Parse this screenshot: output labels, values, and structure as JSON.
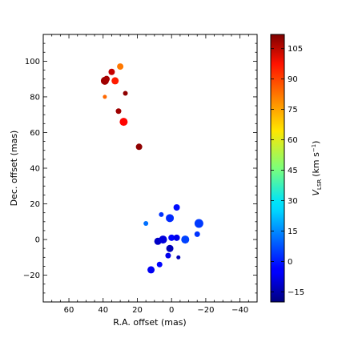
{
  "chart_data": {
    "type": "scatter",
    "xlabel": "R.A. offset (mas)",
    "ylabel": "Dec. offset (mas)",
    "xlim": [
      75,
      -50
    ],
    "ylim": [
      -35,
      115
    ],
    "x_ticks": [
      60,
      40,
      20,
      0,
      -20,
      -40
    ],
    "x_tick_labels": [
      "60",
      "40",
      "20",
      "0",
      "−20",
      "−40"
    ],
    "y_ticks": [
      -20,
      0,
      20,
      40,
      60,
      80,
      100
    ],
    "y_tick_labels": [
      "−20",
      "0",
      "20",
      "40",
      "60",
      "80",
      "100"
    ],
    "colorbar": {
      "label_main": "V",
      "label_sub": "LSR",
      "label_unit_open": "(km s",
      "label_unit_exp": "−1",
      "label_unit_close": ")",
      "range": [
        -20,
        112
      ],
      "colormap": "jet",
      "ticks": [
        -15,
        0,
        15,
        30,
        45,
        60,
        75,
        90,
        105
      ],
      "tick_labels": [
        "−15",
        "0",
        "15",
        "30",
        "45",
        "60",
        "75",
        "90",
        "105"
      ]
    },
    "series": [
      {
        "points": [
          {
            "x": 39,
            "y": 89,
            "v": 108,
            "size": 5
          },
          {
            "x": 38,
            "y": 90,
            "v": 107,
            "size": 4
          },
          {
            "x": 35,
            "y": 94,
            "v": 103,
            "size": 4
          },
          {
            "x": 30,
            "y": 97,
            "v": 80,
            "size": 4
          },
          {
            "x": 33,
            "y": 89,
            "v": 92,
            "size": 4.5
          },
          {
            "x": 39,
            "y": 80,
            "v": 82,
            "size": 2.5
          },
          {
            "x": 27,
            "y": 82,
            "v": 110,
            "size": 3
          },
          {
            "x": 31,
            "y": 72,
            "v": 108,
            "size": 3.5
          },
          {
            "x": 28,
            "y": 66,
            "v": 95,
            "size": 5
          },
          {
            "x": 19,
            "y": 52,
            "v": 110,
            "size": 4
          },
          {
            "x": 15,
            "y": 9,
            "v": 11,
            "size": 3
          },
          {
            "x": 6,
            "y": 14,
            "v": 3,
            "size": 3
          },
          {
            "x": -3,
            "y": 18,
            "v": -2,
            "size": 4
          },
          {
            "x": 1,
            "y": 12,
            "v": 2,
            "size": 5
          },
          {
            "x": -16,
            "y": 9,
            "v": 4,
            "size": 5.5
          },
          {
            "x": -15,
            "y": 3,
            "v": 3,
            "size": 3.5
          },
          {
            "x": 8,
            "y": -1,
            "v": -11,
            "size": 4.5
          },
          {
            "x": 5,
            "y": 0,
            "v": -8,
            "size": 5
          },
          {
            "x": 0,
            "y": 1,
            "v": -3,
            "size": 4
          },
          {
            "x": -3,
            "y": 1,
            "v": -6,
            "size": 4
          },
          {
            "x": -8,
            "y": 0,
            "v": 5,
            "size": 5
          },
          {
            "x": 1,
            "y": -5,
            "v": -13,
            "size": 4.5
          },
          {
            "x": 2,
            "y": -9,
            "v": -6,
            "size": 3.5
          },
          {
            "x": -4,
            "y": -10,
            "v": -13,
            "size": 2.5
          },
          {
            "x": 7,
            "y": -14,
            "v": -3,
            "size": 3.5
          },
          {
            "x": 12,
            "y": -17,
            "v": -5,
            "size": 4.5
          }
        ]
      }
    ]
  }
}
